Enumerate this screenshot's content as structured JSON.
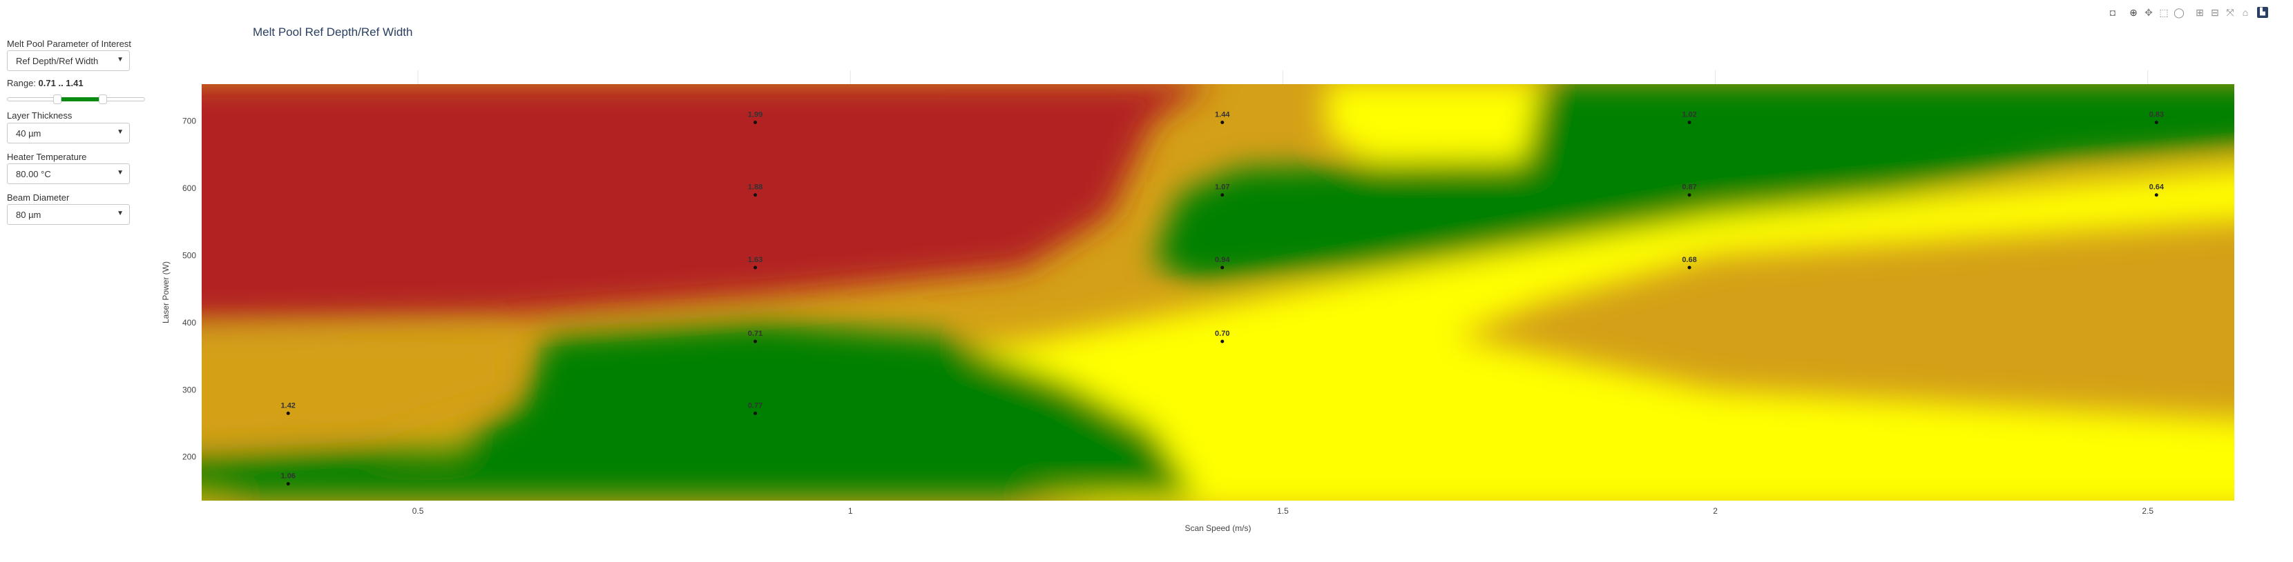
{
  "controls": {
    "parameter_label": "Melt Pool Parameter of Interest",
    "parameter_value": "Ref Depth/Ref Width",
    "range_prefix": "Range:",
    "range_text": "0.71 .. 1.41",
    "range_min": 0.71,
    "range_max": 1.41,
    "layer_thickness_label": "Layer Thickness",
    "layer_thickness_value": "40 µm",
    "heater_temperature_label": "Heater Temperature",
    "heater_temperature_value": "80.00 °C",
    "beam_diameter_label": "Beam Diameter",
    "beam_diameter_value": "80 µm"
  },
  "colors": {
    "in_range": "#008000",
    "boundary": "#ffff00",
    "near": "#d4a017",
    "far": "#b22222"
  },
  "chart_data": {
    "type": "heatmap",
    "title": "Melt Pool Ref Depth/Ref Width",
    "xlabel": "Scan Speed (m/s)",
    "ylabel": "Laser Power (W)",
    "xlim": [
      0.25,
      2.6
    ],
    "ylim": [
      135,
      755
    ],
    "x_ticks": [
      "0.5",
      "1",
      "1.5",
      "2",
      "2.5"
    ],
    "y_ticks": [
      "200",
      "300",
      "400",
      "500",
      "600",
      "700"
    ],
    "grid": true,
    "points": [
      {
        "x": 0.35,
        "y": 160,
        "label": "1.06"
      },
      {
        "x": 0.35,
        "y": 265,
        "label": "1.42"
      },
      {
        "x": 0.89,
        "y": 265,
        "label": "0.77"
      },
      {
        "x": 0.89,
        "y": 372,
        "label": "0.71"
      },
      {
        "x": 0.89,
        "y": 482,
        "label": "1.63"
      },
      {
        "x": 0.89,
        "y": 590,
        "label": "1.88"
      },
      {
        "x": 0.89,
        "y": 698,
        "label": "1.99"
      },
      {
        "x": 1.43,
        "y": 372,
        "label": "0.70"
      },
      {
        "x": 1.43,
        "y": 482,
        "label": "0.94"
      },
      {
        "x": 1.43,
        "y": 590,
        "label": "1.07"
      },
      {
        "x": 1.43,
        "y": 698,
        "label": "1.44"
      },
      {
        "x": 1.97,
        "y": 482,
        "label": "0.68"
      },
      {
        "x": 1.97,
        "y": 590,
        "label": "0.87"
      },
      {
        "x": 1.97,
        "y": 698,
        "label": "1.02"
      },
      {
        "x": 2.51,
        "y": 590,
        "label": "0.64"
      },
      {
        "x": 2.51,
        "y": 698,
        "label": "0.83"
      }
    ]
  }
}
